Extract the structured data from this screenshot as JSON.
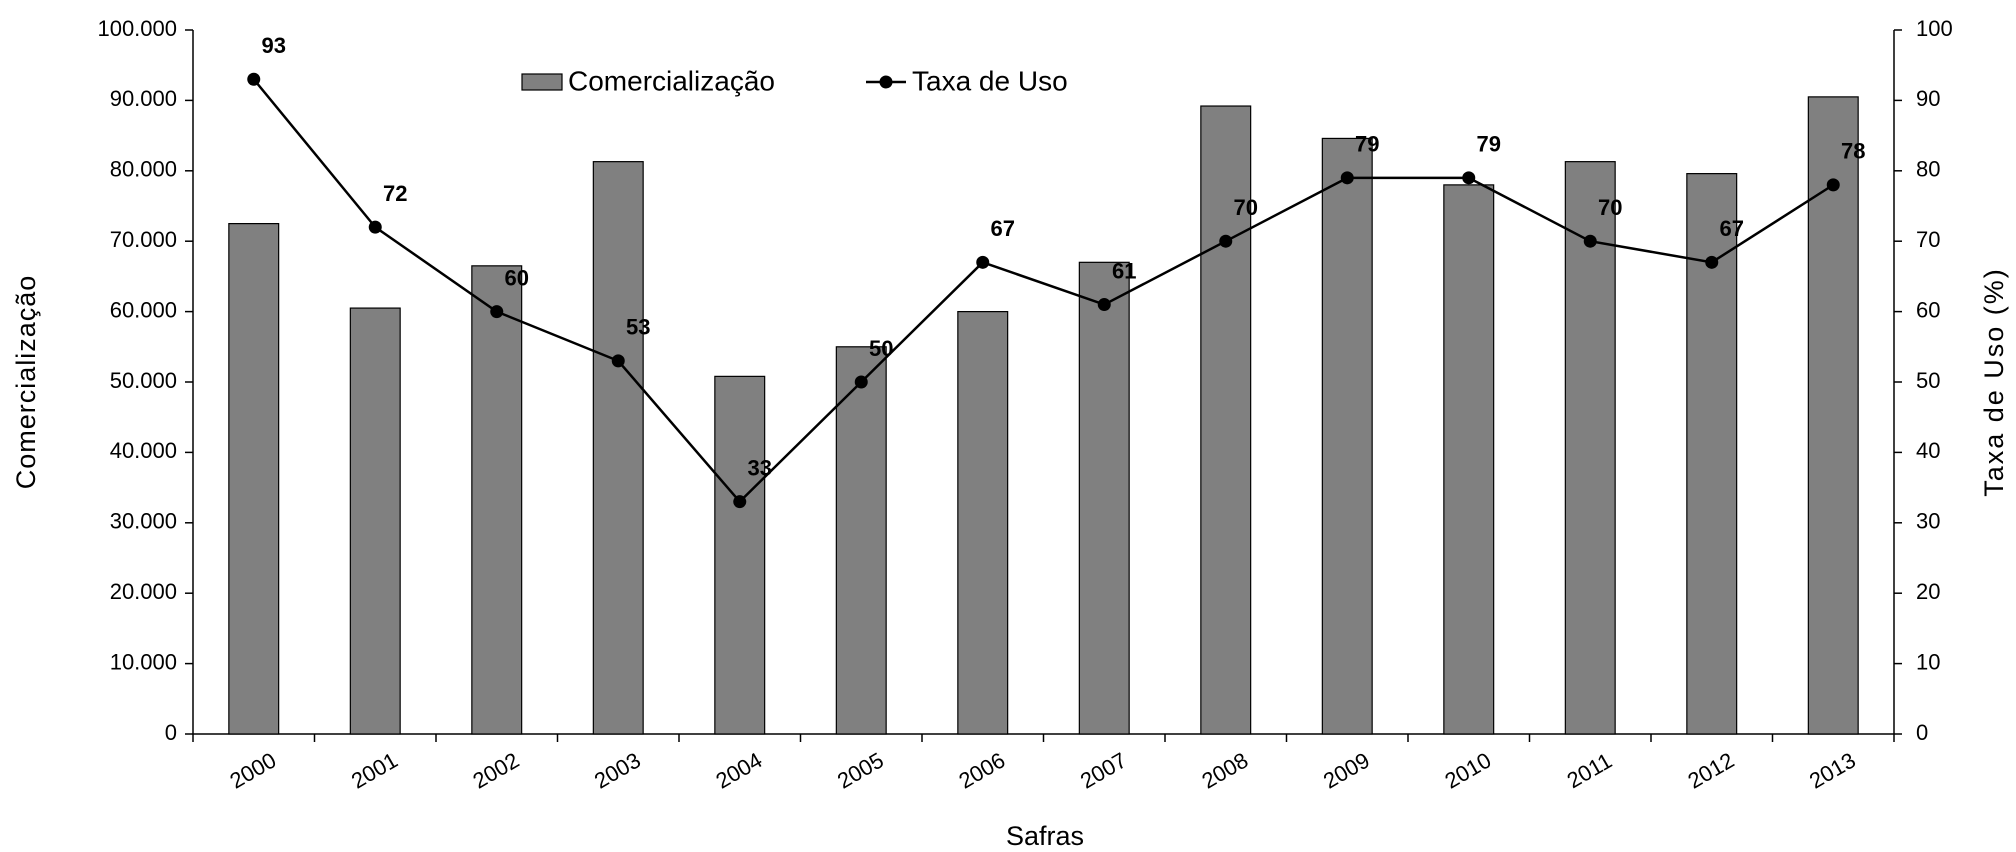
{
  "chart_data": {
    "type": "combo",
    "x_label": "Safras",
    "y_label": "Comercialização",
    "y2_label": "Taxa de Uso (%)",
    "categories": [
      "2000",
      "2001",
      "2002",
      "2003",
      "2004",
      "2005",
      "2006",
      "2007",
      "2008",
      "2009",
      "2010",
      "2011",
      "2012",
      "2013"
    ],
    "series": [
      {
        "name": "Comercialização",
        "type": "bar",
        "color": "#808080",
        "values": [
          72500,
          60500,
          66500,
          81300,
          50800,
          55000,
          60000,
          67000,
          89200,
          84600,
          78000,
          81300,
          79600,
          90500
        ]
      },
      {
        "name": "Taxa de Uso",
        "type": "line",
        "axis": "y2",
        "color": "#000000",
        "values": [
          93,
          72,
          60,
          53,
          33,
          50,
          67,
          61,
          70,
          79,
          79,
          70,
          67,
          78
        ]
      }
    ],
    "ylim": [
      0,
      100000
    ],
    "yticks": [
      {
        "value": 0,
        "label": "0"
      },
      {
        "value": 10000,
        "label": "10.000"
      },
      {
        "value": 20000,
        "label": "20.000"
      },
      {
        "value": 30000,
        "label": "30.000"
      },
      {
        "value": 40000,
        "label": "40.000"
      },
      {
        "value": 50000,
        "label": "50.000"
      },
      {
        "value": 60000,
        "label": "60.000"
      },
      {
        "value": 70000,
        "label": "70.000"
      },
      {
        "value": 80000,
        "label": "80.000"
      },
      {
        "value": 90000,
        "label": "90.000"
      },
      {
        "value": 100000,
        "label": "100.000"
      }
    ],
    "y2lim": [
      0,
      100
    ],
    "y2ticks": [
      0,
      10,
      20,
      30,
      40,
      50,
      60,
      70,
      80,
      90,
      100
    ],
    "legend": "top"
  }
}
